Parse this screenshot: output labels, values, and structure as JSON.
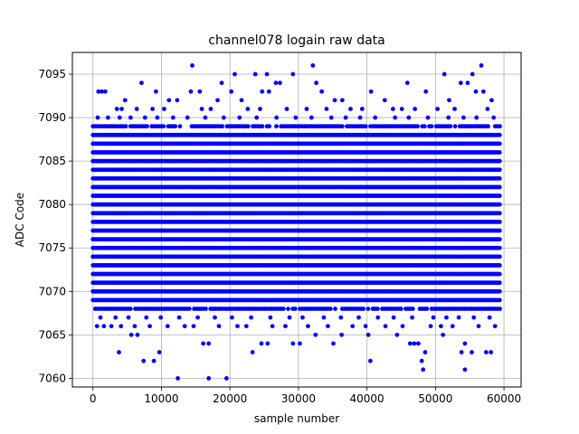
{
  "chart_data": {
    "type": "scatter",
    "title": "channel078 logain raw data",
    "xlabel": "sample number",
    "ylabel": "ADC Code",
    "xlim": [
      -3000,
      62500
    ],
    "ylim": [
      7059,
      7097.5
    ],
    "xticks": [
      0,
      10000,
      20000,
      30000,
      40000,
      50000,
      60000
    ],
    "xtick_labels": [
      "0",
      "10000",
      "20000",
      "30000",
      "40000",
      "50000",
      "60000"
    ],
    "yticks": [
      7060,
      7065,
      7070,
      7075,
      7080,
      7085,
      7090,
      7095
    ],
    "ytick_labels": [
      "7060",
      "7065",
      "7070",
      "7075",
      "7080",
      "7085",
      "7090",
      "7095"
    ],
    "grid": true,
    "marker_color": "#0000ff",
    "x_range": [
      0,
      59500
    ],
    "dense_band": [
      7068,
      7089
    ],
    "outliers": [
      [
        12400,
        7060
      ],
      [
        16900,
        7060
      ],
      [
        19500,
        7060
      ],
      [
        48200,
        7061
      ],
      [
        54300,
        7061
      ],
      [
        7400,
        7062
      ],
      [
        8900,
        7062
      ],
      [
        40500,
        7062
      ],
      [
        48000,
        7062
      ],
      [
        3800,
        7063
      ],
      [
        9700,
        7063
      ],
      [
        23300,
        7063
      ],
      [
        48500,
        7063
      ],
      [
        53800,
        7063
      ],
      [
        55300,
        7063
      ],
      [
        57400,
        7063
      ],
      [
        58100,
        7063
      ],
      [
        16100,
        7064
      ],
      [
        16900,
        7064
      ],
      [
        24600,
        7064
      ],
      [
        25500,
        7064
      ],
      [
        29200,
        7064
      ],
      [
        30200,
        7064
      ],
      [
        35100,
        7064
      ],
      [
        46300,
        7064
      ],
      [
        46900,
        7064
      ],
      [
        47500,
        7064
      ],
      [
        54300,
        7064
      ],
      [
        5600,
        7065
      ],
      [
        6500,
        7065
      ],
      [
        32500,
        7065
      ],
      [
        36300,
        7065
      ],
      [
        40200,
        7065
      ],
      [
        44400,
        7065
      ],
      [
        51100,
        7065
      ],
      [
        14500,
        7096
      ],
      [
        32100,
        7096
      ],
      [
        56700,
        7096
      ],
      [
        20700,
        7095
      ],
      [
        23700,
        7095
      ],
      [
        25400,
        7095
      ],
      [
        29200,
        7095
      ],
      [
        51300,
        7095
      ],
      [
        55400,
        7095
      ],
      [
        7100,
        7094
      ],
      [
        18800,
        7094
      ],
      [
        26700,
        7094
      ],
      [
        27300,
        7094
      ],
      [
        32600,
        7094
      ],
      [
        45900,
        7094
      ],
      [
        53700,
        7094
      ],
      [
        54700,
        7094
      ],
      [
        800,
        7093
      ],
      [
        1300,
        7093
      ],
      [
        1800,
        7093
      ],
      [
        9200,
        7093
      ],
      [
        14300,
        7093
      ],
      [
        15600,
        7093
      ],
      [
        20200,
        7093
      ],
      [
        24700,
        7093
      ],
      [
        25700,
        7093
      ],
      [
        33400,
        7093
      ],
      [
        40600,
        7093
      ],
      [
        48600,
        7093
      ],
      [
        55900,
        7093
      ],
      [
        57000,
        7093
      ],
      [
        4700,
        7092
      ],
      [
        11100,
        7092
      ],
      [
        12300,
        7092
      ],
      [
        18200,
        7092
      ],
      [
        21700,
        7092
      ],
      [
        35300,
        7092
      ],
      [
        36400,
        7092
      ],
      [
        42600,
        7092
      ],
      [
        52000,
        7092
      ],
      [
        58200,
        7092
      ],
      [
        3500,
        7091
      ],
      [
        4200,
        7091
      ],
      [
        6400,
        7091
      ],
      [
        8700,
        7091
      ],
      [
        10400,
        7091
      ],
      [
        15900,
        7091
      ],
      [
        17200,
        7091
      ],
      [
        22600,
        7091
      ],
      [
        24400,
        7091
      ],
      [
        28300,
        7091
      ],
      [
        31200,
        7091
      ],
      [
        34100,
        7091
      ],
      [
        37600,
        7091
      ],
      [
        39300,
        7091
      ],
      [
        43800,
        7091
      ],
      [
        45100,
        7091
      ],
      [
        47000,
        7091
      ],
      [
        50300,
        7091
      ],
      [
        52800,
        7091
      ],
      [
        57600,
        7091
      ],
      [
        600,
        7066
      ],
      [
        1600,
        7066
      ],
      [
        2700,
        7066
      ],
      [
        4100,
        7066
      ],
      [
        6100,
        7066
      ],
      [
        8300,
        7066
      ],
      [
        10900,
        7066
      ],
      [
        13400,
        7066
      ],
      [
        14700,
        7066
      ],
      [
        18400,
        7066
      ],
      [
        21100,
        7066
      ],
      [
        22400,
        7066
      ],
      [
        26200,
        7066
      ],
      [
        28100,
        7066
      ],
      [
        31400,
        7066
      ],
      [
        34300,
        7066
      ],
      [
        37900,
        7066
      ],
      [
        39800,
        7066
      ],
      [
        42700,
        7066
      ],
      [
        45200,
        7066
      ],
      [
        49300,
        7066
      ],
      [
        50800,
        7066
      ],
      [
        52500,
        7066
      ],
      [
        56300,
        7066
      ],
      [
        58700,
        7066
      ],
      [
        1100,
        7067
      ],
      [
        3300,
        7067
      ],
      [
        5200,
        7067
      ],
      [
        7800,
        7067
      ],
      [
        9900,
        7067
      ],
      [
        12600,
        7067
      ],
      [
        15300,
        7067
      ],
      [
        17800,
        7067
      ],
      [
        20300,
        7067
      ],
      [
        23100,
        7067
      ],
      [
        25900,
        7067
      ],
      [
        28700,
        7067
      ],
      [
        30600,
        7067
      ],
      [
        33700,
        7067
      ],
      [
        36200,
        7067
      ],
      [
        38800,
        7067
      ],
      [
        41600,
        7067
      ],
      [
        43900,
        7067
      ],
      [
        46600,
        7067
      ],
      [
        49700,
        7067
      ],
      [
        51600,
        7067
      ],
      [
        53400,
        7067
      ],
      [
        55600,
        7067
      ],
      [
        57900,
        7067
      ],
      [
        700,
        7090
      ],
      [
        2200,
        7090
      ],
      [
        3900,
        7090
      ],
      [
        5500,
        7090
      ],
      [
        7600,
        7090
      ],
      [
        9400,
        7090
      ],
      [
        11700,
        7090
      ],
      [
        13800,
        7090
      ],
      [
        16400,
        7090
      ],
      [
        19100,
        7090
      ],
      [
        21400,
        7090
      ],
      [
        23900,
        7090
      ],
      [
        26800,
        7090
      ],
      [
        29600,
        7090
      ],
      [
        31900,
        7090
      ],
      [
        34800,
        7090
      ],
      [
        36900,
        7090
      ],
      [
        39000,
        7090
      ],
      [
        41200,
        7090
      ],
      [
        44100,
        7090
      ],
      [
        46100,
        7090
      ],
      [
        48900,
        7090
      ],
      [
        51900,
        7090
      ],
      [
        54100,
        7090
      ],
      [
        56000,
        7090
      ],
      [
        58500,
        7090
      ]
    ]
  }
}
